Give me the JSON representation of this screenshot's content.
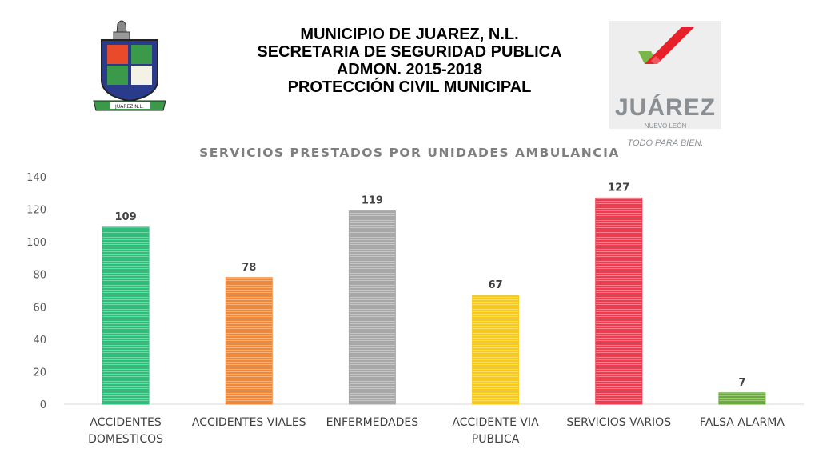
{
  "header": {
    "line1": "MUNICIPIO DE JUAREZ, N.L.",
    "line2": "SECRETARIA DE SEGURIDAD PUBLICA",
    "line3": "ADMON. 2015-2018",
    "line4": "PROTECCIÓN CIVIL MUNICIPAL"
  },
  "crest": {
    "banner_text": "JUAREZ N.L."
  },
  "logo": {
    "word": "JUÁREZ",
    "sub": "NUEVO LEÓN",
    "slogan": "TODO PARA BIEN.",
    "colors": {
      "red": "#e8202a",
      "green": "#7ab648",
      "gray": "#8a8f94"
    }
  },
  "chart_data": {
    "type": "bar",
    "title": "SERVICIOS PRESTADOS POR UNIDADES AMBULANCIA",
    "categories": [
      [
        "ACCIDENTES",
        "DOMESTICOS"
      ],
      [
        "ACCIDENTES VIALES"
      ],
      [
        "ENFERMEDADES"
      ],
      [
        "ACCIDENTE VIA",
        "PUBLICA"
      ],
      [
        "SERVICIOS VARIOS"
      ],
      [
        "FALSA ALARMA"
      ]
    ],
    "values": [
      109,
      78,
      119,
      67,
      127,
      7
    ],
    "colors": [
      "#2dbf7a",
      "#f0883a",
      "#a8a8a8",
      "#f6c91a",
      "#ef3b4f",
      "#6aaa3a"
    ],
    "ylim": [
      0,
      140
    ],
    "yticks": [
      0,
      20,
      40,
      60,
      80,
      100,
      120,
      140
    ],
    "grid": false,
    "data_labels": true
  }
}
